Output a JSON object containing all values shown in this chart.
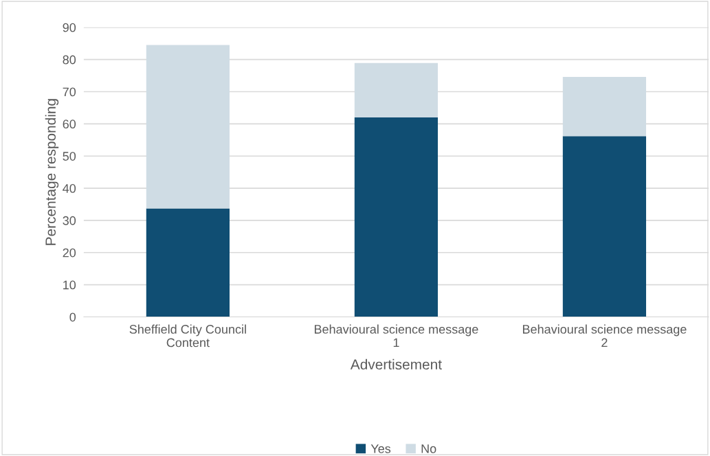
{
  "chart_data": {
    "type": "bar",
    "stacked": true,
    "xlabel": "Advertisement",
    "ylabel": "Percentage responding",
    "categories": [
      "Sheffield City Council Content",
      "Behavioural science message 1",
      "Behavioural science message 2"
    ],
    "series": [
      {
        "name": "Yes",
        "color": "#104e73",
        "values": [
          33.7,
          62.0,
          56.2
        ]
      },
      {
        "name": "No",
        "color": "#cfdce4",
        "values": [
          50.8,
          16.9,
          18.4
        ]
      }
    ],
    "ylim": [
      0,
      90
    ],
    "yticks": [
      0,
      10,
      20,
      30,
      40,
      50,
      60,
      70,
      80,
      90
    ],
    "grid": "y",
    "legend": "bottom"
  }
}
